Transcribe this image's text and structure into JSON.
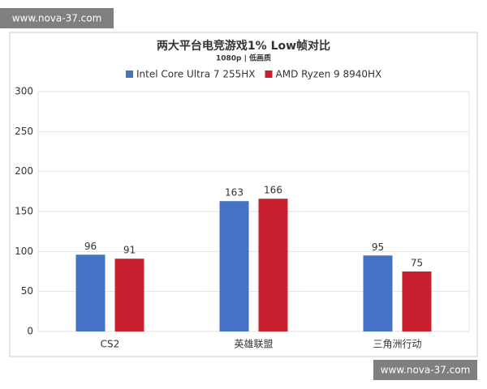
{
  "watermarks": [
    "www.nova-37.com",
    "www.nova-37.com"
  ],
  "chart_data": {
    "type": "bar",
    "title": "两大平台电竞游戏1% Low帧对比",
    "subtitle": "1080p | 低画质",
    "categories": [
      "CS2",
      "英雄联盟",
      "三角洲行动"
    ],
    "series": [
      {
        "name": "Intel Core Ultra 7 255HX",
        "color": "#4472c4",
        "values": [
          96,
          163,
          95
        ]
      },
      {
        "name": "AMD Ryzen 9 8940HX",
        "color": "#c8202f",
        "values": [
          91,
          166,
          75
        ]
      }
    ],
    "ylim": [
      0,
      300
    ],
    "yticks": [
      0,
      50,
      100,
      150,
      200,
      250,
      300
    ],
    "grid": true,
    "legend": "top"
  }
}
